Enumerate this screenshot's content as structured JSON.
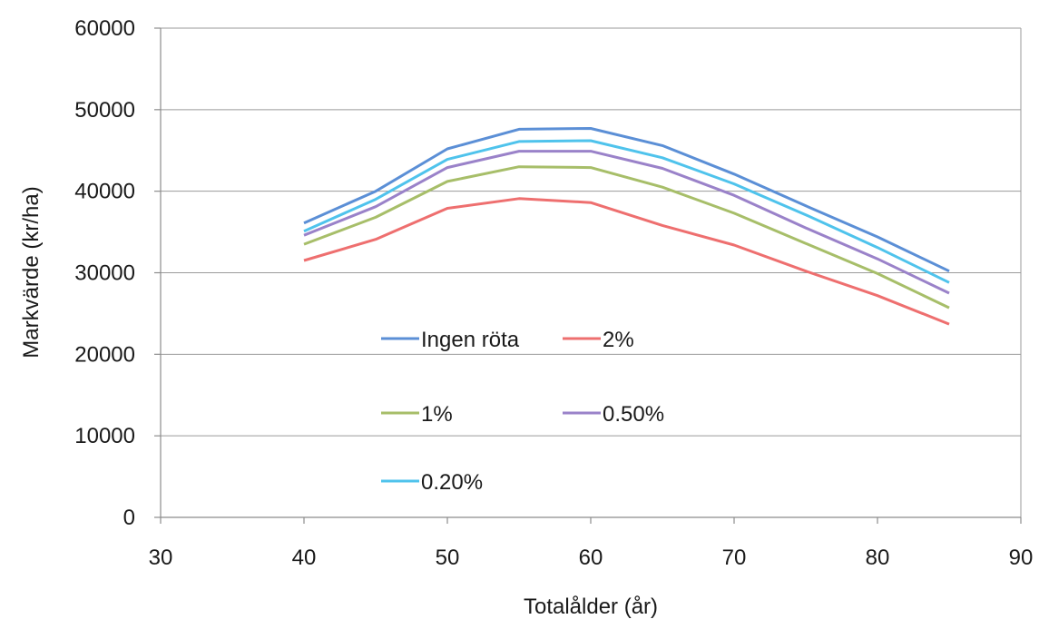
{
  "chart_data": {
    "type": "line",
    "xlabel": "Totalålder (år)",
    "ylabel": "Markvärde (kr/ha)",
    "xlim": [
      30,
      90
    ],
    "ylim": [
      0,
      60000
    ],
    "xticks": [
      30,
      40,
      50,
      60,
      70,
      80,
      90
    ],
    "yticks": [
      0,
      10000,
      20000,
      30000,
      40000,
      50000,
      60000
    ],
    "grid": "horizontal",
    "legend_position": "inside center-left",
    "x": [
      40,
      45,
      50,
      55,
      60,
      65,
      70,
      75,
      80,
      85
    ],
    "series": [
      {
        "name": "Ingen röta",
        "color": "#5B8FD6",
        "values": [
          36100,
          40000,
          45200,
          47600,
          47700,
          45600,
          42100,
          38200,
          34400,
          30200
        ]
      },
      {
        "name": "2%",
        "color": "#EE6F6F",
        "values": [
          31500,
          34100,
          37900,
          39100,
          38600,
          35800,
          33400,
          30200,
          27200,
          23700
        ]
      },
      {
        "name": "1%",
        "color": "#A7BE69",
        "values": [
          33500,
          36800,
          41200,
          43000,
          42900,
          40500,
          37300,
          33600,
          29900,
          25700
        ]
      },
      {
        "name": "0.50%",
        "color": "#9A82C9",
        "values": [
          34600,
          38100,
          42900,
          44900,
          44900,
          42800,
          39500,
          35500,
          31700,
          27500
        ]
      },
      {
        "name": "0.20%",
        "color": "#4FC3EC",
        "values": [
          35100,
          39000,
          43900,
          46100,
          46200,
          44100,
          40900,
          37100,
          33100,
          28800
        ]
      }
    ]
  }
}
